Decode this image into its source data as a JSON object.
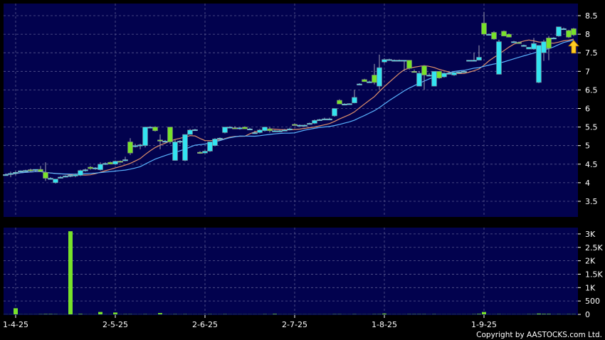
{
  "chart_data": {
    "type": "candlestick",
    "price_axis": {
      "ylim": [
        3.1,
        8.7
      ],
      "ticks": [
        3.5,
        4,
        4.5,
        5,
        5.5,
        6,
        6.5,
        7,
        7.5,
        8,
        8.5
      ],
      "labels": [
        "3.5",
        "4",
        "4.5",
        "5",
        "5.5",
        "6",
        "6.5",
        "7",
        "7.5",
        "8",
        "8.5"
      ],
      "position": "right"
    },
    "volume_axis": {
      "ylim": [
        0,
        3250
      ],
      "ticks": [
        0,
        500,
        1000,
        1500,
        2000,
        2500,
        3000
      ],
      "labels": [
        "0",
        "500",
        "1K",
        "1.5K",
        "2K",
        "2.5K",
        "3K"
      ],
      "position": "right"
    },
    "x_ticks": [
      {
        "index": 2,
        "label": "1-4-25"
      },
      {
        "index": 22,
        "label": "2-5-25"
      },
      {
        "index": 40,
        "label": "2-6-25"
      },
      {
        "index": 58,
        "label": "2-7-25"
      },
      {
        "index": 76,
        "label": "1-8-25"
      },
      {
        "index": 96,
        "label": "1-9-25"
      }
    ],
    "grid": true,
    "candle_fields": [
      "open",
      "high",
      "low",
      "close",
      "volume"
    ],
    "candles": [
      [
        4.22,
        4.25,
        4.2,
        4.22,
        5
      ],
      [
        4.22,
        4.3,
        4.15,
        4.25,
        5
      ],
      [
        4.25,
        4.32,
        4.2,
        4.28,
        230
      ],
      [
        4.3,
        4.33,
        4.28,
        4.32,
        5
      ],
      [
        4.32,
        4.35,
        4.3,
        4.33,
        5
      ],
      [
        4.35,
        4.38,
        4.3,
        4.33,
        5
      ],
      [
        4.33,
        4.36,
        4.3,
        4.36,
        5
      ],
      [
        4.36,
        4.45,
        4.3,
        4.3,
        10
      ],
      [
        4.28,
        4.55,
        4.05,
        4.12,
        15
      ],
      [
        4.12,
        4.15,
        4.1,
        4.12,
        15
      ],
      [
        4.0,
        4.1,
        3.98,
        4.1,
        10
      ],
      [
        4.15,
        4.18,
        4.13,
        4.15,
        5
      ],
      [
        4.18,
        4.2,
        4.15,
        4.18,
        5
      ],
      [
        4.2,
        4.22,
        4.15,
        4.2,
        3100
      ],
      [
        4.18,
        4.25,
        4.15,
        4.22,
        5
      ],
      [
        4.2,
        4.35,
        4.18,
        4.33,
        20
      ],
      [
        4.33,
        4.38,
        4.3,
        4.35,
        5
      ],
      [
        4.42,
        4.45,
        4.35,
        4.38,
        5
      ],
      [
        4.38,
        4.42,
        4.35,
        4.4,
        5
      ],
      [
        4.35,
        4.55,
        4.33,
        4.5,
        90
      ],
      [
        4.5,
        4.55,
        4.48,
        4.52,
        5
      ],
      [
        4.55,
        4.57,
        4.5,
        4.5,
        5
      ],
      [
        4.5,
        4.6,
        4.48,
        4.58,
        70
      ],
      [
        4.58,
        4.6,
        4.55,
        4.57,
        5
      ],
      [
        4.6,
        4.7,
        4.58,
        4.62,
        10
      ],
      [
        5.1,
        5.2,
        4.75,
        4.8,
        10
      ],
      [
        5.0,
        5.05,
        4.95,
        5.0,
        5
      ],
      [
        5.0,
        5.05,
        4.9,
        5.02,
        5
      ],
      [
        5.0,
        5.5,
        4.95,
        5.5,
        10
      ],
      [
        5.5,
        5.52,
        5.48,
        5.5,
        5
      ],
      [
        5.5,
        5.52,
        5.38,
        5.4,
        5
      ],
      [
        5.15,
        5.3,
        4.9,
        5.12,
        50
      ],
      [
        5.12,
        5.15,
        5.1,
        5.12,
        5
      ],
      [
        5.5,
        5.5,
        5.05,
        5.1,
        5
      ],
      [
        4.6,
        5.15,
        4.6,
        5.1,
        10
      ],
      [
        5.1,
        5.15,
        5.05,
        5.12,
        5
      ],
      [
        4.6,
        5.3,
        4.58,
        5.3,
        10
      ],
      [
        5.3,
        5.45,
        5.3,
        5.42,
        5
      ],
      [
        5.42,
        5.45,
        5.4,
        5.43,
        5
      ],
      [
        4.82,
        4.85,
        4.78,
        4.8,
        5
      ],
      [
        4.8,
        4.88,
        4.78,
        4.85,
        5
      ],
      [
        4.85,
        5.1,
        4.83,
        5.1,
        10
      ],
      [
        5.0,
        5.2,
        4.98,
        5.18,
        5
      ],
      [
        5.18,
        5.22,
        5.15,
        5.2,
        5
      ],
      [
        5.35,
        5.5,
        5.33,
        5.5,
        10
      ],
      [
        5.5,
        5.52,
        5.48,
        5.5,
        5
      ],
      [
        5.48,
        5.52,
        5.45,
        5.47,
        5
      ],
      [
        5.45,
        5.5,
        5.43,
        5.48,
        5
      ],
      [
        5.5,
        5.52,
        5.47,
        5.45,
        5
      ],
      [
        5.45,
        5.48,
        5.42,
        5.45,
        5
      ],
      [
        5.35,
        5.4,
        5.33,
        5.35,
        5
      ],
      [
        5.35,
        5.45,
        5.33,
        5.42,
        5
      ],
      [
        5.4,
        5.5,
        5.38,
        5.5,
        10
      ],
      [
        5.45,
        5.5,
        5.35,
        5.4,
        5
      ],
      [
        5.4,
        5.42,
        5.38,
        5.4,
        20
      ],
      [
        5.4,
        5.42,
        5.38,
        5.4,
        5
      ],
      [
        5.42,
        5.45,
        5.4,
        5.42,
        5
      ],
      [
        5.45,
        5.48,
        5.43,
        5.45,
        5
      ],
      [
        5.57,
        5.6,
        5.55,
        5.55,
        5
      ],
      [
        5.55,
        5.57,
        5.53,
        5.55,
        5
      ],
      [
        5.55,
        5.57,
        5.53,
        5.55,
        5
      ],
      [
        5.6,
        5.62,
        5.58,
        5.6,
        5
      ],
      [
        5.6,
        5.7,
        5.58,
        5.68,
        5
      ],
      [
        5.7,
        5.72,
        5.68,
        5.7,
        5
      ],
      [
        5.72,
        5.75,
        5.7,
        5.72,
        5
      ],
      [
        5.72,
        5.75,
        5.7,
        5.72,
        5
      ],
      [
        5.8,
        6.0,
        5.78,
        6.0,
        10
      ],
      [
        6.22,
        6.25,
        6.12,
        6.12,
        10
      ],
      [
        6.12,
        6.14,
        6.1,
        6.12,
        5
      ],
      [
        6.12,
        6.14,
        6.1,
        6.13,
        5
      ],
      [
        6.15,
        6.5,
        6.14,
        6.3,
        10
      ],
      [
        6.65,
        6.68,
        6.63,
        6.66,
        5
      ],
      [
        6.78,
        6.8,
        6.72,
        6.72,
        5
      ],
      [
        6.72,
        6.75,
        6.7,
        6.72,
        5
      ],
      [
        6.9,
        7.2,
        6.65,
        6.7,
        10
      ],
      [
        6.6,
        7.45,
        6.5,
        7.1,
        10
      ],
      [
        7.25,
        7.35,
        7.22,
        7.32,
        30
      ],
      [
        7.32,
        7.34,
        7.3,
        7.32,
        5
      ],
      [
        7.3,
        7.32,
        7.28,
        7.3,
        5
      ],
      [
        7.3,
        7.32,
        7.28,
        7.3,
        5
      ],
      [
        7.3,
        7.3,
        7.0,
        7.3,
        5
      ],
      [
        7.3,
        7.3,
        7.05,
        7.08,
        10
      ],
      [
        7.0,
        7.05,
        6.97,
        6.98,
        10
      ],
      [
        6.6,
        7.0,
        6.6,
        6.95,
        10
      ],
      [
        7.15,
        7.15,
        6.5,
        6.9,
        10
      ],
      [
        6.9,
        6.95,
        6.88,
        6.9,
        5
      ],
      [
        6.6,
        7.0,
        6.6,
        7.0,
        10
      ],
      [
        7.0,
        7.0,
        6.8,
        6.82,
        5
      ],
      [
        6.85,
        6.97,
        6.83,
        6.95,
        5
      ],
      [
        6.95,
        6.97,
        6.93,
        6.95,
        5
      ],
      [
        6.9,
        6.98,
        6.88,
        6.97,
        5
      ],
      [
        6.97,
        7.0,
        6.95,
        6.98,
        5
      ],
      [
        7.0,
        7.02,
        6.98,
        7.0,
        5
      ],
      [
        7.3,
        7.3,
        7.28,
        7.3,
        5
      ],
      [
        7.3,
        7.5,
        7.28,
        7.3,
        10
      ],
      [
        7.3,
        7.7,
        7.3,
        7.38,
        20
      ],
      [
        8.3,
        8.6,
        7.95,
        8.0,
        90
      ],
      [
        8.0,
        8.02,
        7.98,
        8.0,
        5
      ],
      [
        8.05,
        8.08,
        7.85,
        7.87,
        5
      ],
      [
        6.92,
        7.85,
        6.92,
        7.8,
        10
      ],
      [
        8.08,
        8.1,
        7.95,
        7.95,
        5
      ],
      [
        8.0,
        8.02,
        7.92,
        7.92,
        5
      ],
      [
        7.8,
        7.82,
        7.78,
        7.8,
        5
      ],
      [
        7.78,
        7.8,
        7.75,
        7.75,
        5
      ],
      [
        7.7,
        7.72,
        7.68,
        7.7,
        5
      ],
      [
        7.6,
        7.65,
        7.6,
        7.65,
        10
      ],
      [
        7.6,
        7.9,
        7.58,
        7.75,
        10
      ],
      [
        6.7,
        7.7,
        6.68,
        7.7,
        30
      ],
      [
        7.5,
        7.85,
        7.28,
        7.8,
        20
      ],
      [
        7.9,
        7.95,
        7.3,
        7.62,
        20
      ],
      [
        7.9,
        7.92,
        7.88,
        7.9,
        5
      ],
      [
        7.95,
        8.2,
        7.93,
        8.2,
        10
      ],
      [
        8.15,
        8.18,
        8.12,
        8.15,
        5
      ],
      [
        8.1,
        8.12,
        7.9,
        7.92,
        10
      ],
      [
        8.15,
        8.17,
        7.95,
        7.98,
        10
      ]
    ],
    "moving_averages": [
      {
        "color": "#e0906a"
      },
      {
        "color": "#5ab4ff"
      }
    ],
    "marker": {
      "type": "arrow-up",
      "color": "#ffcc22",
      "index": 114
    }
  },
  "colors": {
    "background": "#000000",
    "panel": "#02024e",
    "grid": "#5a5a90",
    "up": "#33e3f0",
    "down": "#78e22a"
  },
  "copyright": "Copyright by AASTOCKS.com Ltd."
}
